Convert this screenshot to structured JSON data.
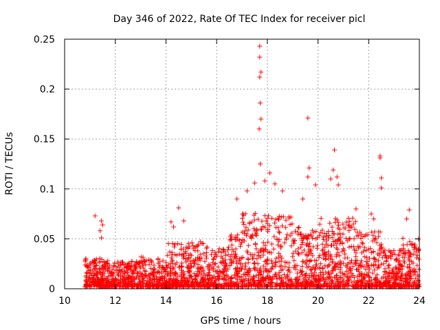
{
  "chart_data": {
    "type": "scatter",
    "title": "Day 346 of 2022, Rate Of TEC Index for receiver picl",
    "xlabel": "GPS time / hours",
    "ylabel": "ROTI / TECUs",
    "xlim": [
      10,
      24
    ],
    "ylim": [
      0,
      0.25
    ],
    "xticks": [
      10,
      12,
      14,
      16,
      18,
      20,
      22,
      24
    ],
    "yticks": [
      0,
      0.05,
      0.1,
      0.15,
      0.2,
      0.25
    ],
    "xtick_labels": [
      "10",
      "12",
      "14",
      "16",
      "18",
      "20",
      "22",
      "24"
    ],
    "ytick_labels": [
      "0",
      "0.05",
      "0.1",
      "0.15",
      "0.2",
      "0.25"
    ],
    "grid": true,
    "marker": "+",
    "color": "#ff0000",
    "series": [
      {
        "name": "ROTI",
        "points": [
          [
            11.2,
            0.073
          ],
          [
            11.45,
            0.068
          ],
          [
            11.5,
            0.064
          ],
          [
            11.4,
            0.058
          ],
          [
            11.45,
            0.051
          ],
          [
            14.5,
            0.081
          ],
          [
            14.2,
            0.067
          ],
          [
            14.7,
            0.068
          ],
          [
            14.3,
            0.062
          ],
          [
            17.7,
            0.243
          ],
          [
            17.7,
            0.232
          ],
          [
            17.75,
            0.217
          ],
          [
            17.7,
            0.212
          ],
          [
            17.72,
            0.186
          ],
          [
            17.75,
            0.17
          ],
          [
            17.68,
            0.16
          ],
          [
            17.72,
            0.125
          ],
          [
            17.5,
            0.106
          ],
          [
            18.1,
            0.116
          ],
          [
            17.9,
            0.108
          ],
          [
            18.3,
            0.105
          ],
          [
            19.6,
            0.171
          ],
          [
            19.65,
            0.121
          ],
          [
            19.6,
            0.112
          ],
          [
            19.9,
            0.104
          ],
          [
            20.65,
            0.139
          ],
          [
            20.6,
            0.119
          ],
          [
            20.75,
            0.112
          ],
          [
            20.5,
            0.11
          ],
          [
            20.8,
            0.104
          ],
          [
            22.45,
            0.133
          ],
          [
            22.45,
            0.131
          ],
          [
            22.5,
            0.111
          ],
          [
            22.5,
            0.101
          ],
          [
            22.1,
            0.075
          ],
          [
            22.2,
            0.07
          ],
          [
            23.6,
            0.079
          ],
          [
            23.5,
            0.07
          ],
          [
            16.8,
            0.09
          ],
          [
            17.2,
            0.098
          ],
          [
            18.6,
            0.098
          ],
          [
            21.5,
            0.08
          ],
          [
            19.4,
            0.09
          ]
        ]
      }
    ]
  }
}
